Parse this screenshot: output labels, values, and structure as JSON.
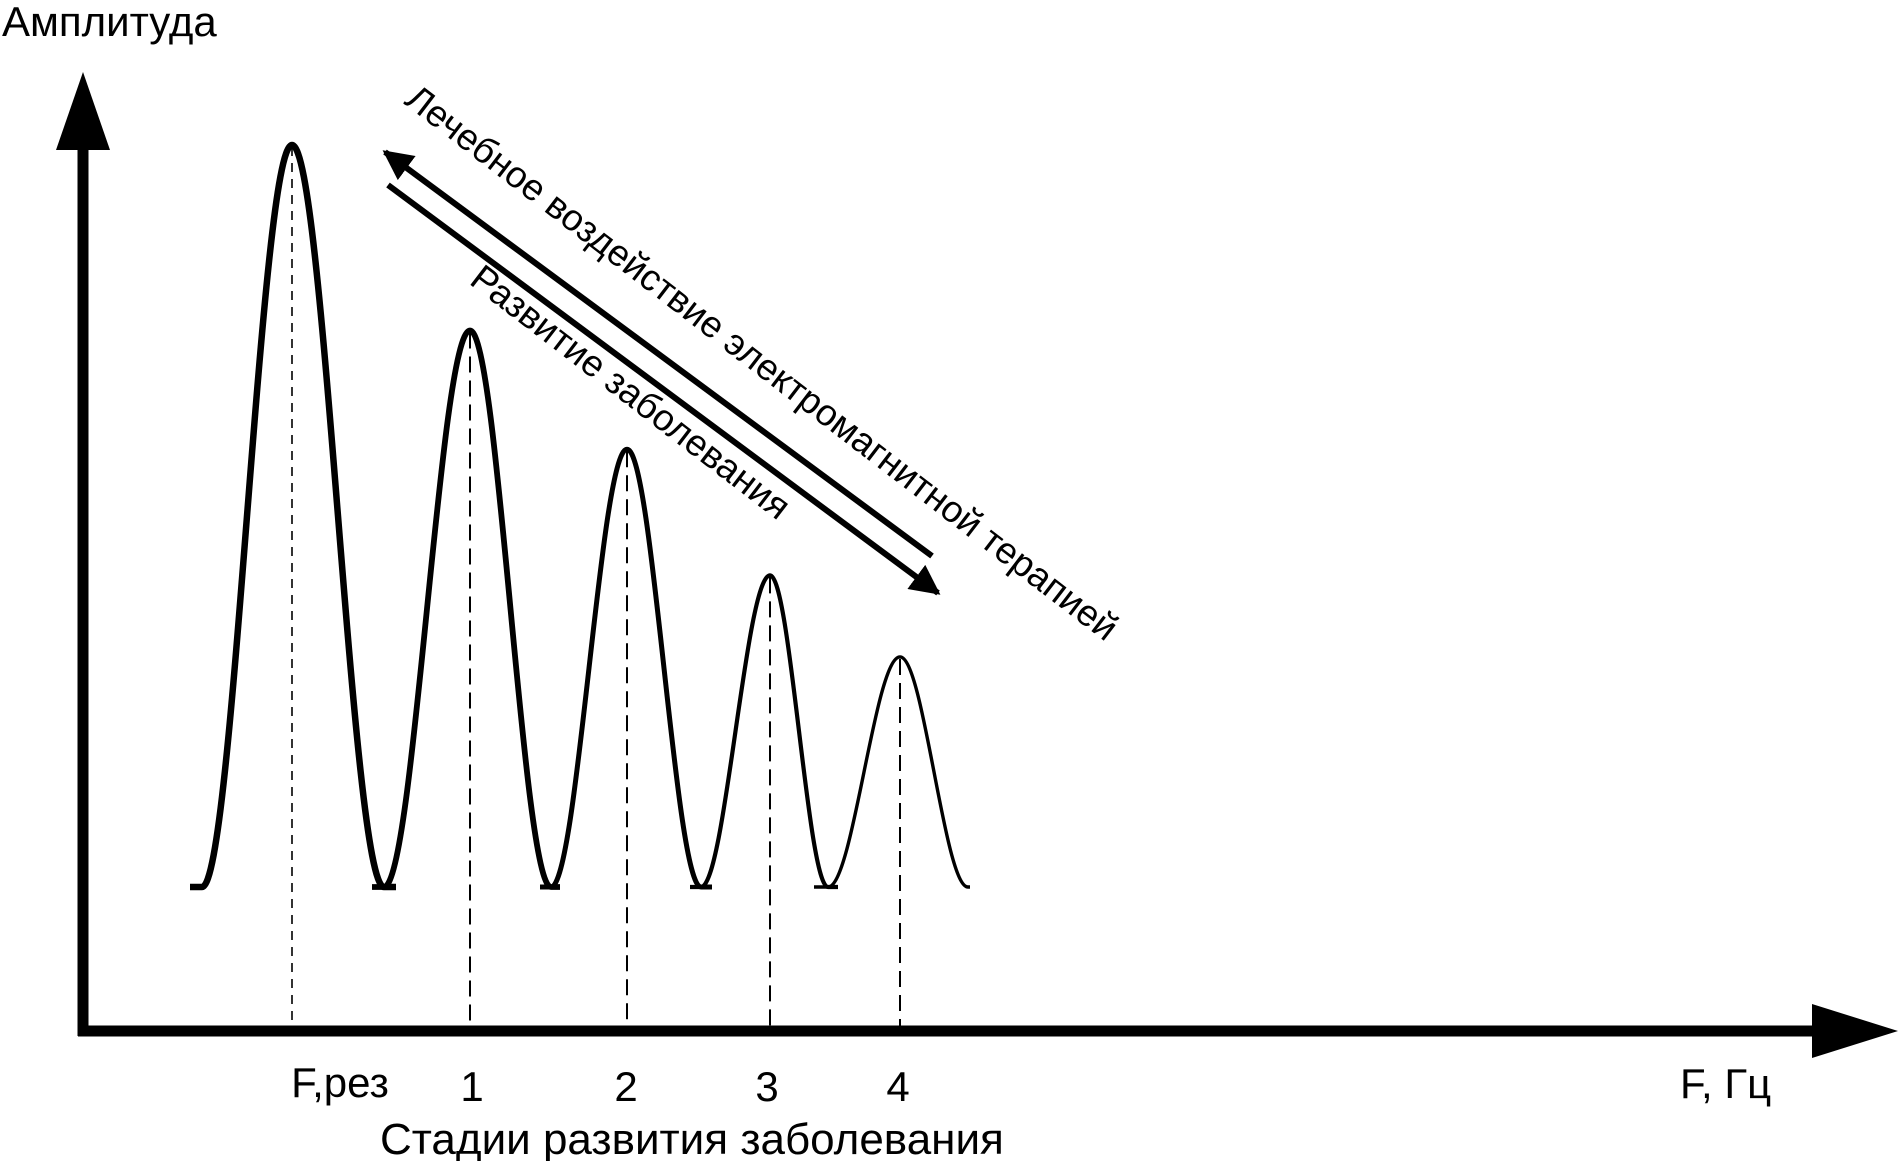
{
  "y_axis_label": "Амплитуда",
  "x_axis_label": "F, Гц",
  "x_axis_caption": "Стадии развития заболевания",
  "ticks": [
    "F,рез",
    "1",
    "2",
    "3",
    "4"
  ],
  "upper_arrow_text": "Лечебное воздействие электромагнитной терапией",
  "lower_arrow_text": "Развитие заболевания",
  "peaks_relative_amplitude": [
    1.0,
    0.75,
    0.59,
    0.42,
    0.31
  ],
  "colors": {
    "ink": "#000000",
    "background": "#ffffff"
  }
}
